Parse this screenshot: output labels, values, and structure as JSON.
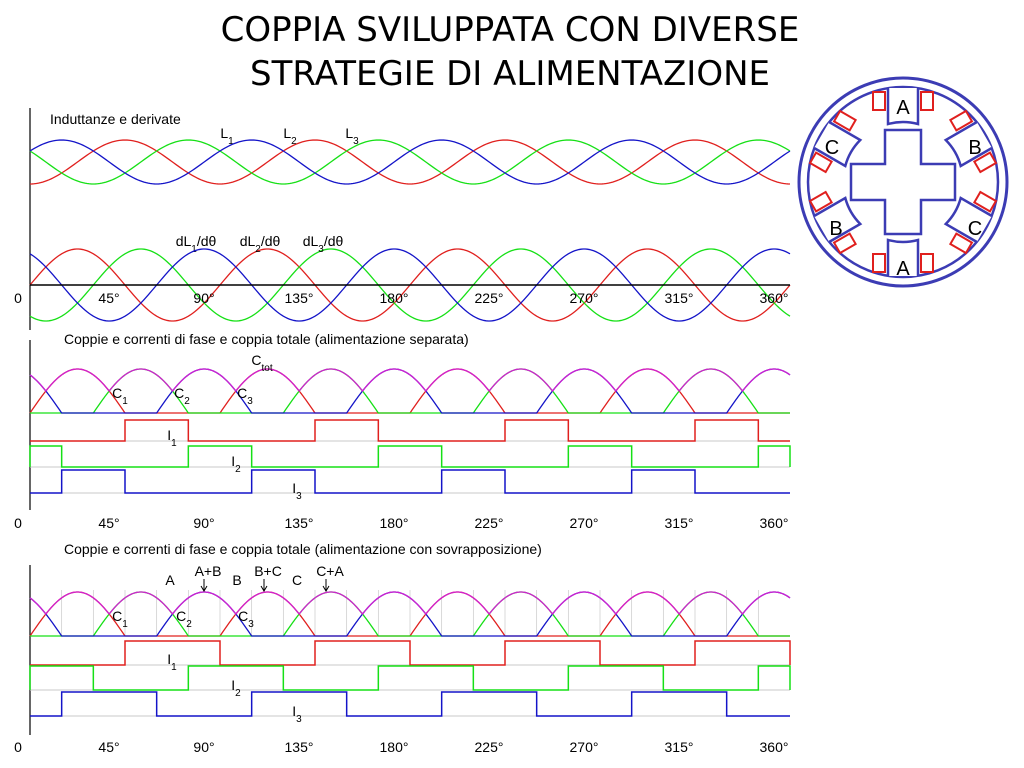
{
  "title": {
    "line1": "COPPIA SVILUPPATA CON DIVERSE",
    "line2": "STRATEGIE DI ALIMENTAZIONE"
  },
  "colors": {
    "phase1": "#e0201e",
    "phase2": "#16e016",
    "phase3": "#1414c8",
    "total": "#d020d0",
    "grid": "#c8c8c8",
    "stator": "#3c3cb4"
  },
  "motor": {
    "labels": [
      "A",
      "B",
      "C",
      "A",
      "B",
      "C"
    ]
  },
  "chart_data": [
    {
      "type": "line",
      "title": "Induttanze e derivate",
      "xlim": [
        0,
        360
      ],
      "x_ticks": [
        "0",
        "45°",
        "90°",
        "135°",
        "180°",
        "225°",
        "270°",
        "315°",
        "360°"
      ],
      "groups": [
        {
          "name": "inductances",
          "period_deg": 90,
          "series": [
            {
              "name": "L",
              "sub": "1",
              "phase_deg": 0
            },
            {
              "name": "L",
              "sub": "2",
              "phase_deg": 30
            },
            {
              "name": "L",
              "sub": "3",
              "phase_deg": 60
            }
          ]
        },
        {
          "name": "derivatives",
          "period_deg": 90,
          "series": [
            {
              "name": "dL",
              "sub": "1",
              "suffix": "/dθ",
              "phase_deg": 0
            },
            {
              "name": "dL",
              "sub": "2",
              "suffix": "/dθ",
              "phase_deg": 30
            },
            {
              "name": "dL",
              "sub": "3",
              "suffix": "/dθ",
              "phase_deg": 60
            }
          ]
        }
      ]
    },
    {
      "type": "line",
      "title": "Coppie e correnti di fase e coppia totale (alimentazione separata)",
      "xlim": [
        0,
        360
      ],
      "x_ticks": [
        "0",
        "45°",
        "90°",
        "135°",
        "180°",
        "225°",
        "270°",
        "315°",
        "360°"
      ],
      "torque_labels": [
        {
          "name": "C",
          "sub": "1"
        },
        {
          "name": "C",
          "sub": "2"
        },
        {
          "name": "C",
          "sub": "3"
        },
        {
          "name": "C",
          "sub": "tot"
        }
      ],
      "currents": [
        {
          "name": "I",
          "sub": "1",
          "on_intervals_deg": [
            [
              45,
              75
            ],
            [
              135,
              165
            ],
            [
              225,
              255
            ],
            [
              315,
              345
            ]
          ]
        },
        {
          "name": "I",
          "sub": "2",
          "on_intervals_deg": [
            [
              0,
              15
            ],
            [
              75,
              105
            ],
            [
              165,
              195
            ],
            [
              255,
              285
            ],
            [
              345,
              360
            ]
          ]
        },
        {
          "name": "I",
          "sub": "3",
          "on_intervals_deg": [
            [
              15,
              45
            ],
            [
              105,
              135
            ],
            [
              195,
              225
            ],
            [
              285,
              315
            ]
          ]
        }
      ]
    },
    {
      "type": "line",
      "title": "Coppie e correnti di fase e coppia totale (alimentazione con sovrapposizione)",
      "xlim": [
        0,
        360
      ],
      "x_ticks": [
        "0",
        "45°",
        "90°",
        "135°",
        "180°",
        "225°",
        "270°",
        "315°",
        "360°"
      ],
      "torque_labels": [
        {
          "name": "C",
          "sub": "1"
        },
        {
          "name": "C",
          "sub": "2"
        },
        {
          "name": "C",
          "sub": "3"
        }
      ],
      "annotations": [
        "A",
        "A+B",
        "B",
        "B+C",
        "C",
        "C+A"
      ],
      "currents": [
        {
          "name": "I",
          "sub": "1",
          "on_intervals_deg": [
            [
              45,
              90
            ],
            [
              135,
              180
            ],
            [
              225,
              270
            ],
            [
              315,
              360
            ]
          ]
        },
        {
          "name": "I",
          "sub": "2",
          "on_intervals_deg": [
            [
              0,
              30
            ],
            [
              75,
              120
            ],
            [
              165,
              210
            ],
            [
              255,
              300
            ],
            [
              345,
              360
            ]
          ]
        },
        {
          "name": "I",
          "sub": "3",
          "on_intervals_deg": [
            [
              15,
              60
            ],
            [
              105,
              150
            ],
            [
              195,
              240
            ],
            [
              285,
              330
            ]
          ]
        }
      ]
    }
  ]
}
